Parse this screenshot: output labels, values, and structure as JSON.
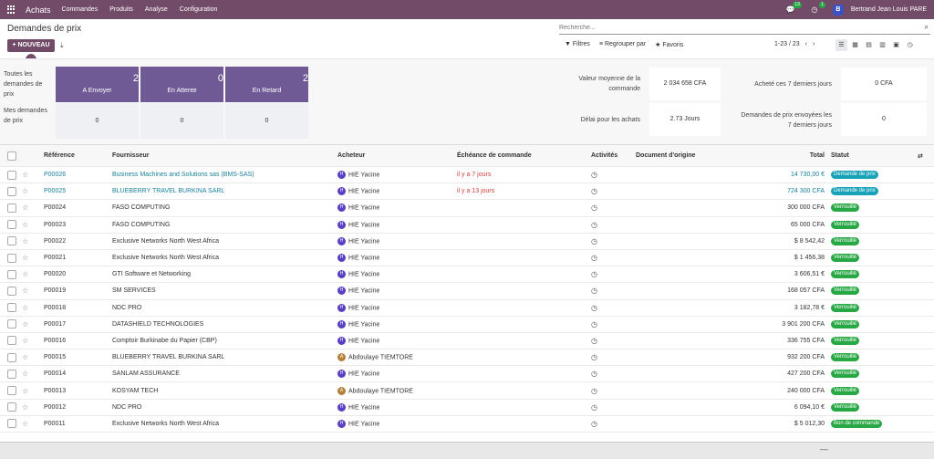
{
  "topbar": {
    "app_name": "Achats",
    "menus": [
      "Commandes",
      "Produits",
      "Analyse",
      "Configuration"
    ],
    "messages_count": "13",
    "activities_count": "1",
    "user_initial": "B",
    "user_name": "Bertrand Jean Louis PARE"
  },
  "control_panel": {
    "title": "Demandes de prix",
    "new_button": "+ NOUVEAU",
    "search_placeholder": "Recherche...",
    "filters": "Filtres",
    "group_by": "Regrouper par",
    "favorites": "Favoris",
    "pager": "1-23 / 23"
  },
  "dashboard": {
    "row1_label": "Toutes les demandes de prix",
    "row2_label": "Mes demandes de prix",
    "tiles": [
      {
        "num": "2",
        "label": "A Envoyer"
      },
      {
        "num": "0",
        "label": "En Attente"
      },
      {
        "num": "2",
        "label": "En Retard"
      }
    ],
    "my_values": [
      "0",
      "0",
      "0"
    ],
    "stats": [
      {
        "label": "Valeur moyenne de la commande",
        "value": "2 034 658 CFA"
      },
      {
        "label": "Acheté ces 7 derniers jours",
        "value": "0 CFA"
      },
      {
        "label": "Délai pour les achats",
        "value": "2.73 Jours"
      },
      {
        "label": "Demandes de prix envoyées les 7 derniers jours",
        "value": "0"
      }
    ]
  },
  "table": {
    "headers": {
      "reference": "Référence",
      "supplier": "Fournisseur",
      "buyer": "Acheteur",
      "deadline": "Échéance de commande",
      "activities": "Activités",
      "origin": "Document d'origine",
      "total": "Total",
      "status": "Statut"
    },
    "rows": [
      {
        "ref": "P00026",
        "supplier": "Business Machines and Solutions sas (BMS-SAS)",
        "buyer_initial": "H",
        "buyer": "HIE Yacine",
        "deadline": "il y a 7 jours",
        "total": "14 730,00 €",
        "status": "Demande de prix"
      },
      {
        "ref": "P00025",
        "supplier": "BLUEBERRY TRAVEL BURKINA SARL",
        "buyer_initial": "H",
        "buyer": "HIE Yacine",
        "deadline": "il y a 13 jours",
        "total": "724 300 CFA",
        "status": "Demande de prix"
      },
      {
        "ref": "P00024",
        "supplier": "FASO COMPUTING",
        "buyer_initial": "H",
        "buyer": "HIE Yacine",
        "deadline": "",
        "total": "300 000 CFA",
        "status": "Verrouillé"
      },
      {
        "ref": "P00023",
        "supplier": "FASO COMPUTING",
        "buyer_initial": "H",
        "buyer": "HIE Yacine",
        "deadline": "",
        "total": "65 000 CFA",
        "status": "Verrouillé"
      },
      {
        "ref": "P00022",
        "supplier": "Exclusive Networks North West Africa",
        "buyer_initial": "H",
        "buyer": "HIE Yacine",
        "deadline": "",
        "total": "$ 8 542,42",
        "status": "Verrouillé"
      },
      {
        "ref": "P00021",
        "supplier": "Exclusive Networks North West Africa",
        "buyer_initial": "H",
        "buyer": "HIE Yacine",
        "deadline": "",
        "total": "$ 1 456,38",
        "status": "Verrouillé"
      },
      {
        "ref": "P00020",
        "supplier": "GTI Software et Networking",
        "buyer_initial": "H",
        "buyer": "HIE Yacine",
        "deadline": "",
        "total": "3 606,51 €",
        "status": "Verrouillé"
      },
      {
        "ref": "P00019",
        "supplier": "SM SERVICES",
        "buyer_initial": "H",
        "buyer": "HIE Yacine",
        "deadline": "",
        "total": "168 057 CFA",
        "status": "Verrouillé"
      },
      {
        "ref": "P00018",
        "supplier": "NDC PRO",
        "buyer_initial": "H",
        "buyer": "HIE Yacine",
        "deadline": "",
        "total": "3 182,78 €",
        "status": "Verrouillé"
      },
      {
        "ref": "P00017",
        "supplier": "DATASHIELD TECHNOLOGIES",
        "buyer_initial": "H",
        "buyer": "HIE Yacine",
        "deadline": "",
        "total": "3 901 200 CFA",
        "status": "Verrouillé"
      },
      {
        "ref": "P00016",
        "supplier": "Comptoir Burkinabe du Papier (CBP)",
        "buyer_initial": "H",
        "buyer": "HIE Yacine",
        "deadline": "",
        "total": "336 755 CFA",
        "status": "Verrouillé"
      },
      {
        "ref": "P00015",
        "supplier": "BLUEBERRY TRAVEL BURKINA SARL",
        "buyer_initial": "A",
        "buyer": "Abdoulaye TIEMTORE",
        "deadline": "",
        "total": "932 200 CFA",
        "status": "Verrouillé"
      },
      {
        "ref": "P00014",
        "supplier": "SANLAM ASSURANCE",
        "buyer_initial": "H",
        "buyer": "HIE Yacine",
        "deadline": "",
        "total": "427 200 CFA",
        "status": "Verrouillé"
      },
      {
        "ref": "P00013",
        "supplier": "KOSYAM TECH",
        "buyer_initial": "A",
        "buyer": "Abdoulaye TIEMTORE",
        "deadline": "",
        "total": "240 000 CFA",
        "status": "Verrouillé"
      },
      {
        "ref": "P00012",
        "supplier": "NDC PRO",
        "buyer_initial": "H",
        "buyer": "HIE Yacine",
        "deadline": "",
        "total": "6 094,10 €",
        "status": "Verrouillé"
      },
      {
        "ref": "P00011",
        "supplier": "Exclusive Networks North West Africa",
        "buyer_initial": "H",
        "buyer": "HIE Yacine",
        "deadline": "",
        "total": "$ 5 012,30",
        "status": "Bon de commande"
      }
    ]
  },
  "colors": {
    "brand": "#714b67",
    "tile": "#6f5a95",
    "link": "#17809e",
    "overdue": "#d23f3a",
    "status_rfq": "#17a2b8",
    "status_locked": "#28a745",
    "buyer_H": "#5b3fc2",
    "buyer_A": "#b5823a"
  },
  "icons": [
    "apps-grid-icon",
    "chat-icon",
    "clock-icon",
    "search-icon",
    "download-icon",
    "filter-icon",
    "layers-icon",
    "star-icon",
    "list-view-icon",
    "kanban-view-icon",
    "pivot-view-icon",
    "graph-view-icon",
    "calendar-view-icon",
    "activity-view-icon",
    "settings-toggle-icon"
  ]
}
